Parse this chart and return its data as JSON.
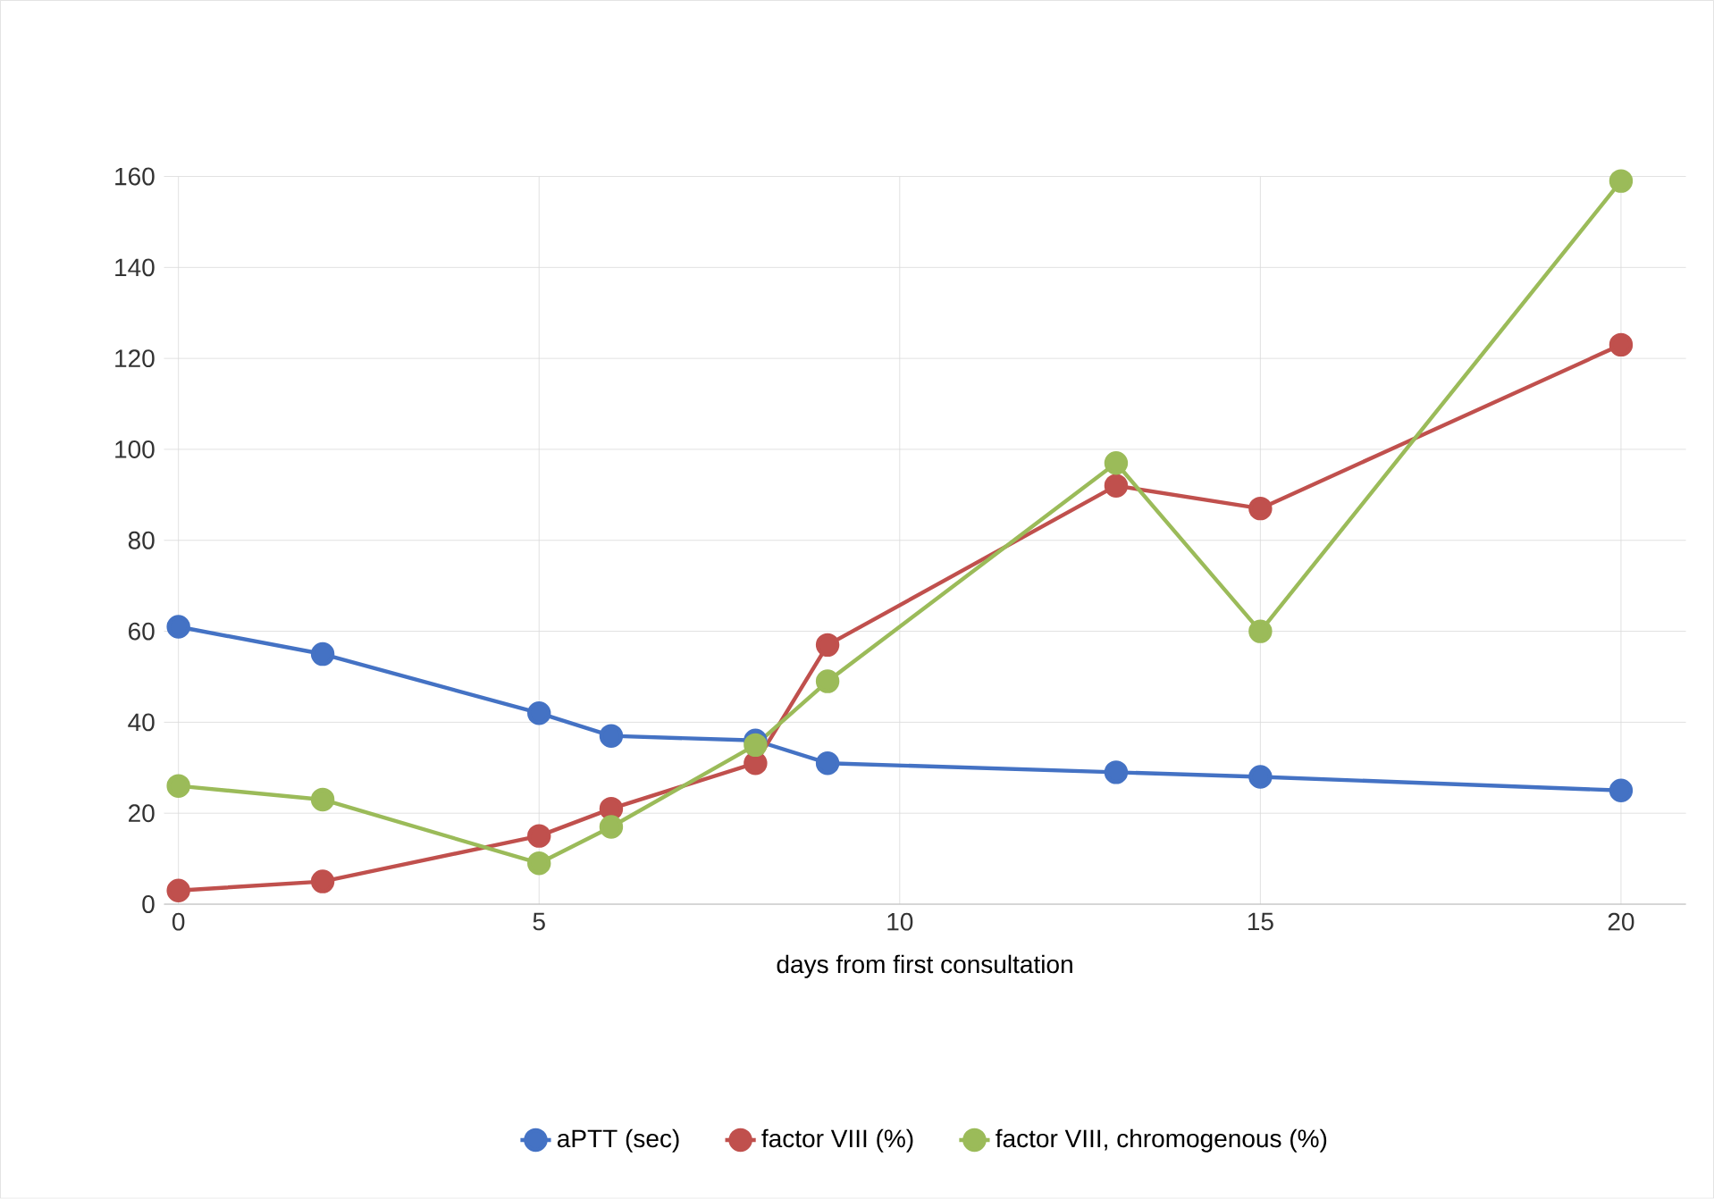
{
  "chart_data": {
    "type": "line",
    "xlabel": "days from first consultation",
    "x": [
      0,
      2,
      5,
      6,
      8,
      9,
      13,
      15,
      20
    ],
    "series": [
      {
        "name": "aPTT (sec)",
        "color": "#4472c4",
        "values": [
          61,
          55,
          42,
          37,
          36,
          31,
          29,
          28,
          25
        ]
      },
      {
        "name": "factor VIII (%)",
        "color": "#c0504d",
        "values": [
          3,
          5,
          15,
          21,
          31,
          57,
          92,
          87,
          123
        ]
      },
      {
        "name": "factor VIII, chromogenous (%)",
        "color": "#9bbb59",
        "values": [
          26,
          23,
          9,
          17,
          35,
          49,
          97,
          60,
          159
        ]
      }
    ],
    "xlim": [
      -0.2,
      20.9
    ],
    "xticks": [
      0,
      5,
      10,
      15,
      20
    ],
    "ylim": [
      0,
      160
    ],
    "yticks": [
      0,
      20,
      40,
      60,
      80,
      100,
      120,
      140,
      160
    ],
    "grid": true,
    "legend": "bottom",
    "marker": "circle",
    "line_style": "solid"
  }
}
